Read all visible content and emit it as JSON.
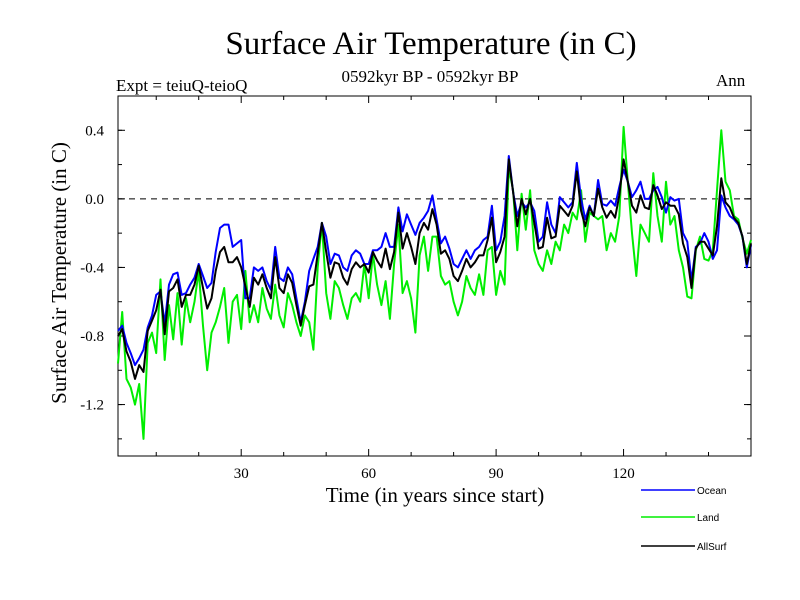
{
  "chart_data": {
    "type": "line",
    "title": "Surface Air Temperature (in C)",
    "left_label": "Expt = teiuQ-teioQ",
    "center_label": "0592kyr BP - 0592kyr BP",
    "right_label": "Ann",
    "xlabel": "Time (in years since start)",
    "ylabel": "Surface Air Temperature (in C)",
    "xlim": [
      1,
      150
    ],
    "ylim": [
      -1.5,
      0.6
    ],
    "xticks": [
      30,
      60,
      90,
      120
    ],
    "yticks": [
      -1.2,
      -0.8,
      -0.4,
      0.0,
      0.4
    ],
    "ytick_labels": [
      "-1.2",
      "-0.8",
      "-0.4",
      "0.0",
      "0.4"
    ],
    "reference_line": 0.0,
    "series": [
      {
        "name": "Ocean",
        "color": "#0000ff",
        "x": [
          1,
          2,
          3,
          4,
          5,
          6,
          7,
          8,
          9,
          10,
          11,
          12,
          13,
          14,
          15,
          16,
          17,
          18,
          19,
          20,
          21,
          22,
          23,
          24,
          25,
          26,
          27,
          28,
          29,
          30,
          31,
          32,
          33,
          34,
          35,
          36,
          37,
          38,
          39,
          40,
          41,
          42,
          43,
          44,
          45,
          46,
          47,
          48,
          49,
          50,
          51,
          52,
          53,
          54,
          55,
          56,
          57,
          58,
          59,
          60,
          61,
          62,
          63,
          64,
          65,
          66,
          67,
          68,
          69,
          70,
          71,
          72,
          73,
          74,
          75,
          76,
          77,
          78,
          79,
          80,
          81,
          82,
          83,
          84,
          85,
          86,
          87,
          88,
          89,
          90,
          91,
          92,
          93,
          94,
          95,
          96,
          97,
          98,
          99,
          100,
          101,
          102,
          103,
          104,
          105,
          106,
          107,
          108,
          109,
          110,
          111,
          112,
          113,
          114,
          115,
          116,
          117,
          118,
          119,
          120,
          121,
          122,
          123,
          124,
          125,
          126,
          127,
          128,
          129,
          130,
          131,
          132,
          133,
          134,
          135,
          136,
          137,
          138,
          139,
          140,
          141,
          142,
          143,
          144,
          145,
          146,
          147,
          148,
          149,
          150
        ],
        "values": [
          -0.77,
          -0.74,
          -0.84,
          -0.9,
          -0.97,
          -0.93,
          -0.88,
          -0.75,
          -0.68,
          -0.56,
          -0.54,
          -0.73,
          -0.5,
          -0.44,
          -0.43,
          -0.56,
          -0.55,
          -0.5,
          -0.46,
          -0.38,
          -0.45,
          -0.52,
          -0.49,
          -0.31,
          -0.17,
          -0.15,
          -0.15,
          -0.28,
          -0.26,
          -0.24,
          -0.58,
          -0.58,
          -0.4,
          -0.42,
          -0.4,
          -0.48,
          -0.53,
          -0.28,
          -0.46,
          -0.48,
          -0.4,
          -0.44,
          -0.58,
          -0.72,
          -0.6,
          -0.42,
          -0.35,
          -0.28,
          -0.14,
          -0.22,
          -0.38,
          -0.32,
          -0.33,
          -0.4,
          -0.42,
          -0.33,
          -0.3,
          -0.32,
          -0.38,
          -0.38,
          -0.3,
          -0.3,
          -0.28,
          -0.2,
          -0.28,
          -0.28,
          -0.05,
          -0.19,
          -0.09,
          -0.15,
          -0.21,
          -0.14,
          -0.11,
          -0.07,
          0.02,
          -0.12,
          -0.26,
          -0.22,
          -0.29,
          -0.38,
          -0.4,
          -0.35,
          -0.3,
          -0.35,
          -0.3,
          -0.28,
          -0.24,
          -0.22,
          -0.04,
          -0.3,
          -0.25,
          -0.1,
          0.25,
          0.04,
          -0.1,
          -0.02,
          -0.05,
          -0.02,
          -0.07,
          -0.25,
          -0.22,
          -0.02,
          -0.15,
          -0.2,
          0.01,
          -0.02,
          -0.05,
          -0.02,
          0.21,
          0.0,
          -0.12,
          -0.04,
          -0.1,
          0.11,
          -0.03,
          -0.04,
          -0.01,
          -0.04,
          0.07,
          0.17,
          0.1,
          0.01,
          0.05,
          0.1,
          0.0,
          0.0,
          0.05,
          0.07,
          0.01,
          -0.08,
          0.01,
          -0.01,
          0.0,
          -0.2,
          -0.25,
          -0.48,
          -0.28,
          -0.26,
          -0.2,
          -0.25,
          -0.35,
          -0.3,
          0.02,
          -0.05,
          -0.1,
          -0.12,
          -0.15,
          -0.22,
          -0.4,
          -0.27
        ],
        "label": "Ocean"
      },
      {
        "name": "Land",
        "color": "#00ee00",
        "x": [
          1,
          2,
          3,
          4,
          5,
          6,
          7,
          8,
          9,
          10,
          11,
          12,
          13,
          14,
          15,
          16,
          17,
          18,
          19,
          20,
          21,
          22,
          23,
          24,
          25,
          26,
          27,
          28,
          29,
          30,
          31,
          32,
          33,
          34,
          35,
          36,
          37,
          38,
          39,
          40,
          41,
          42,
          43,
          44,
          45,
          46,
          47,
          48,
          49,
          50,
          51,
          52,
          53,
          54,
          55,
          56,
          57,
          58,
          59,
          60,
          61,
          62,
          63,
          64,
          65,
          66,
          67,
          68,
          69,
          70,
          71,
          72,
          73,
          74,
          75,
          76,
          77,
          78,
          79,
          80,
          81,
          82,
          83,
          84,
          85,
          86,
          87,
          88,
          89,
          90,
          91,
          92,
          93,
          94,
          95,
          96,
          97,
          98,
          99,
          100,
          101,
          102,
          103,
          104,
          105,
          106,
          107,
          108,
          109,
          110,
          111,
          112,
          113,
          114,
          115,
          116,
          117,
          118,
          119,
          120,
          121,
          122,
          123,
          124,
          125,
          126,
          127,
          128,
          129,
          130,
          131,
          132,
          133,
          134,
          135,
          136,
          137,
          138,
          139,
          140,
          141,
          142,
          143,
          144,
          145,
          146,
          147,
          148,
          149,
          150
        ],
        "values": [
          -0.96,
          -0.66,
          -1.05,
          -1.1,
          -1.2,
          -1.08,
          -1.4,
          -0.84,
          -0.78,
          -0.9,
          -0.47,
          -0.94,
          -0.62,
          -0.82,
          -0.55,
          -0.85,
          -0.58,
          -0.72,
          -0.6,
          -0.42,
          -0.74,
          -1.0,
          -0.78,
          -0.72,
          -0.63,
          -0.52,
          -0.84,
          -0.6,
          -0.56,
          -0.76,
          -0.42,
          -0.72,
          -0.62,
          -0.72,
          -0.52,
          -0.64,
          -0.7,
          -0.5,
          -0.68,
          -0.75,
          -0.55,
          -0.62,
          -0.72,
          -0.8,
          -0.68,
          -0.72,
          -0.88,
          -0.4,
          -0.14,
          -0.55,
          -0.7,
          -0.48,
          -0.52,
          -0.62,
          -0.7,
          -0.58,
          -0.55,
          -0.6,
          -0.38,
          -0.58,
          -0.32,
          -0.5,
          -0.62,
          -0.48,
          -0.7,
          -0.38,
          -0.15,
          -0.55,
          -0.48,
          -0.58,
          -0.78,
          -0.33,
          -0.22,
          -0.42,
          -0.22,
          -0.22,
          -0.45,
          -0.5,
          -0.48,
          -0.6,
          -0.68,
          -0.6,
          -0.45,
          -0.52,
          -0.56,
          -0.44,
          -0.56,
          -0.3,
          -0.28,
          -0.56,
          -0.42,
          -0.5,
          0.18,
          0.05,
          -0.3,
          0.03,
          -0.18,
          0.05,
          -0.3,
          -0.38,
          -0.42,
          -0.3,
          -0.38,
          -0.25,
          -0.3,
          -0.15,
          -0.2,
          -0.08,
          -0.12,
          0.05,
          -0.25,
          -0.08,
          -0.1,
          -0.12,
          -0.1,
          -0.3,
          -0.2,
          -0.25,
          -0.1,
          0.42,
          0.1,
          -0.2,
          -0.45,
          -0.15,
          -0.2,
          -0.25,
          0.15,
          -0.1,
          -0.25,
          0.1,
          -0.15,
          -0.1,
          -0.3,
          -0.4,
          -0.57,
          -0.58,
          -0.3,
          -0.22,
          -0.35,
          -0.36,
          -0.3,
          0.05,
          0.4,
          0.1,
          0.05,
          -0.1,
          -0.12,
          -0.23,
          -0.32,
          -0.24
        ],
        "label": "Land"
      },
      {
        "name": "AllSurf",
        "color": "#000000",
        "x": [
          1,
          2,
          3,
          4,
          5,
          6,
          7,
          8,
          9,
          10,
          11,
          12,
          13,
          14,
          15,
          16,
          17,
          18,
          19,
          20,
          21,
          22,
          23,
          24,
          25,
          26,
          27,
          28,
          29,
          30,
          31,
          32,
          33,
          34,
          35,
          36,
          37,
          38,
          39,
          40,
          41,
          42,
          43,
          44,
          45,
          46,
          47,
          48,
          49,
          50,
          51,
          52,
          53,
          54,
          55,
          56,
          57,
          58,
          59,
          60,
          61,
          62,
          63,
          64,
          65,
          66,
          67,
          68,
          69,
          70,
          71,
          72,
          73,
          74,
          75,
          76,
          77,
          78,
          79,
          80,
          81,
          82,
          83,
          84,
          85,
          86,
          87,
          88,
          89,
          90,
          91,
          92,
          93,
          94,
          95,
          96,
          97,
          98,
          99,
          100,
          101,
          102,
          103,
          104,
          105,
          106,
          107,
          108,
          109,
          110,
          111,
          112,
          113,
          114,
          115,
          116,
          117,
          118,
          119,
          120,
          121,
          122,
          123,
          124,
          125,
          126,
          127,
          128,
          129,
          130,
          131,
          132,
          133,
          134,
          135,
          136,
          137,
          138,
          139,
          140,
          141,
          142,
          143,
          144,
          145,
          146,
          147,
          148,
          149,
          150
        ],
        "values": [
          -0.8,
          -0.76,
          -0.89,
          -0.95,
          -1.05,
          -0.97,
          -1.01,
          -0.77,
          -0.71,
          -0.65,
          -0.53,
          -0.79,
          -0.54,
          -0.52,
          -0.47,
          -0.63,
          -0.56,
          -0.56,
          -0.5,
          -0.39,
          -0.52,
          -0.64,
          -0.58,
          -0.42,
          -0.31,
          -0.28,
          -0.37,
          -0.37,
          -0.34,
          -0.4,
          -0.51,
          -0.63,
          -0.46,
          -0.5,
          -0.44,
          -0.52,
          -0.58,
          -0.34,
          -0.52,
          -0.55,
          -0.44,
          -0.49,
          -0.62,
          -0.74,
          -0.62,
          -0.51,
          -0.5,
          -0.32,
          -0.14,
          -0.31,
          -0.46,
          -0.37,
          -0.38,
          -0.46,
          -0.5,
          -0.41,
          -0.37,
          -0.4,
          -0.38,
          -0.43,
          -0.31,
          -0.36,
          -0.4,
          -0.29,
          -0.41,
          -0.31,
          -0.08,
          -0.29,
          -0.2,
          -0.28,
          -0.38,
          -0.2,
          -0.14,
          -0.18,
          -0.06,
          -0.15,
          -0.32,
          -0.3,
          -0.35,
          -0.45,
          -0.48,
          -0.42,
          -0.35,
          -0.4,
          -0.37,
          -0.33,
          -0.33,
          -0.24,
          -0.11,
          -0.37,
          -0.31,
          -0.22,
          0.23,
          0.04,
          -0.16,
          0.0,
          -0.09,
          0.0,
          -0.14,
          -0.29,
          -0.28,
          -0.11,
          -0.23,
          -0.22,
          -0.04,
          -0.07,
          -0.1,
          -0.04,
          0.16,
          -0.07,
          -0.16,
          -0.05,
          -0.1,
          0.06,
          -0.05,
          -0.11,
          -0.07,
          -0.11,
          0.02,
          0.23,
          0.1,
          -0.04,
          -0.08,
          0.02,
          -0.05,
          -0.06,
          0.08,
          0.02,
          -0.06,
          -0.02,
          -0.04,
          -0.04,
          -0.09,
          -0.26,
          -0.34,
          -0.52,
          -0.29,
          -0.25,
          -0.25,
          -0.29,
          -0.33,
          -0.16,
          0.12,
          -0.02,
          -0.05,
          -0.11,
          -0.14,
          -0.22,
          -0.38,
          -0.26
        ],
        "label": "AllSurf"
      }
    ]
  }
}
